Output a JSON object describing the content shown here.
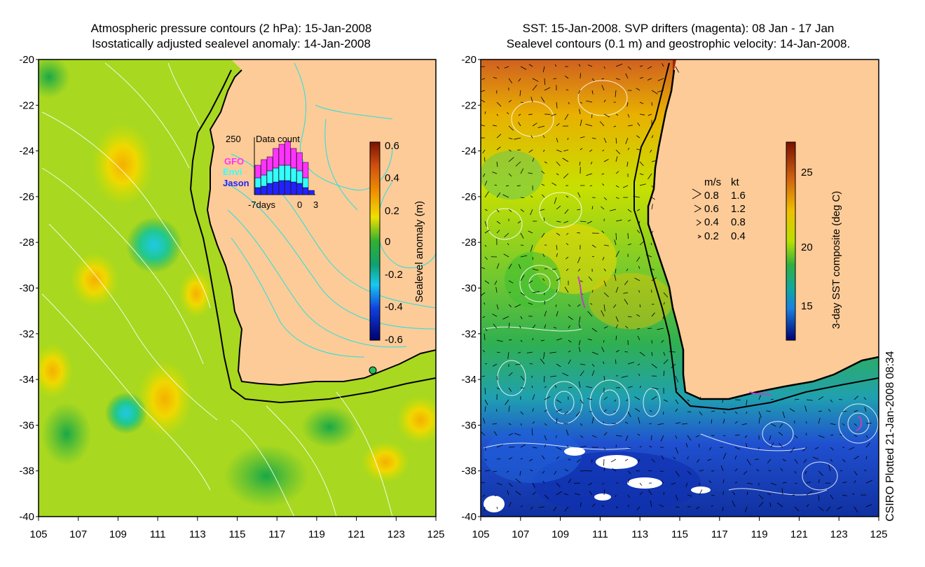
{
  "left_panel": {
    "title_line1": "Atmospheric pressure contours (2 hPa): 15-Jan-2008",
    "title_line2": "Isostatically adjusted sealevel anomaly: 14-Jan-2008",
    "x_ticks": [
      "105",
      "107",
      "109",
      "111",
      "113",
      "115",
      "117",
      "119",
      "121",
      "123",
      "125"
    ],
    "y_ticks": [
      "-20",
      "-22",
      "-24",
      "-26",
      "-28",
      "-30",
      "-32",
      "-34",
      "-36",
      "-38",
      "-40"
    ],
    "colorbar": {
      "label": "Sealevel anomaly (m)",
      "ticks": [
        "0.6",
        "0.4",
        "0.2",
        "0",
        "-0.2",
        "-0.4",
        "-0.6"
      ],
      "range": [
        -0.6,
        0.6
      ]
    },
    "data_count": {
      "title": "Data count",
      "max_label": "250",
      "series": [
        "GFO",
        "Envi",
        "Jason"
      ],
      "series_colors": [
        "#ff33ff",
        "#33ffff",
        "#2222ff"
      ],
      "x_labels": [
        "-7days",
        "0",
        "3"
      ]
    }
  },
  "right_panel": {
    "title_line1": "SST: 15-Jan-2008. SVP drifters (magenta): 08 Jan - 17 Jan",
    "title_line2": "Sealevel contours (0.1 m) and geostrophic velocity: 14-Jan-2008.",
    "x_ticks": [
      "105",
      "107",
      "109",
      "111",
      "113",
      "115",
      "117",
      "119",
      "121",
      "123",
      "125"
    ],
    "y_ticks": [
      "-20",
      "-22",
      "-24",
      "-26",
      "-28",
      "-30",
      "-32",
      "-34",
      "-36",
      "-38",
      "-40"
    ],
    "colorbar": {
      "label": "3-day SST composite (deg C)",
      "ticks": [
        "25",
        "20",
        "15"
      ]
    },
    "velocity_legend": {
      "header_ms": "m/s",
      "header_kt": "kt",
      "rows": [
        {
          "ms": "0.8",
          "kt": "1.6"
        },
        {
          "ms": "0.6",
          "kt": "1.2"
        },
        {
          "ms": "0.4",
          "kt": "0.8"
        },
        {
          "ms": "0.2",
          "kt": "0.4"
        }
      ]
    }
  },
  "credit": "CSIRO Plotted 21-Jan-2008 08:34",
  "colors": {
    "land": "#fdcb98",
    "coast": "#000000",
    "contour_left": "#22e0e0"
  }
}
